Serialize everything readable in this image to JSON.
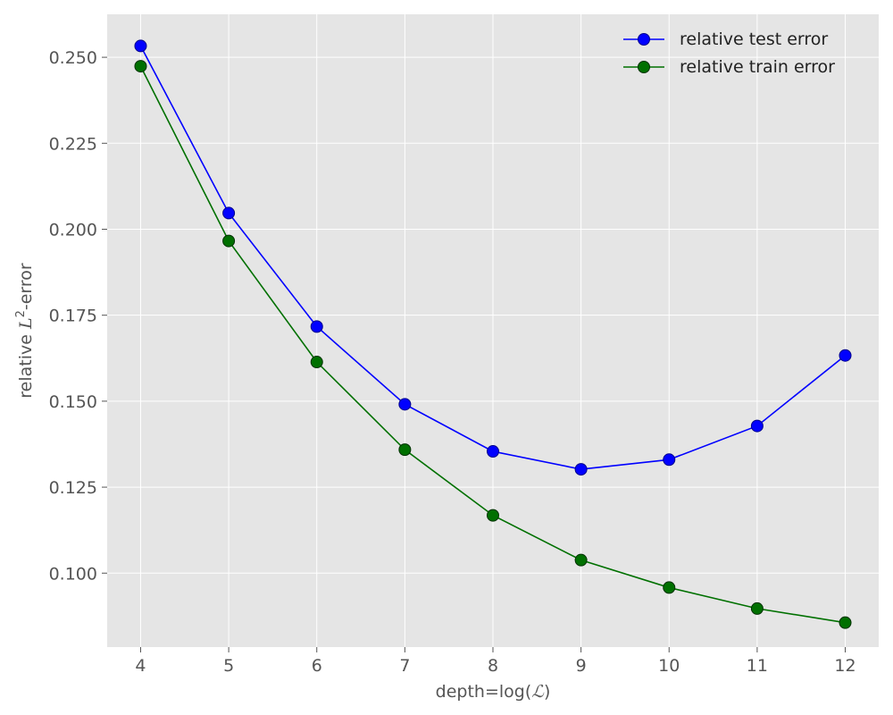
{
  "chart_data": {
    "type": "line",
    "title": "",
    "xlabel_prefix": "depth=log(",
    "xlabel_symbol": "ℒ",
    "xlabel_suffix": ")",
    "ylabel_prefix": "relative ",
    "ylabel_symbol": "L",
    "ylabel_sup": "2",
    "ylabel_suffix": "-error",
    "x": [
      4,
      5,
      6,
      7,
      8,
      9,
      10,
      11,
      12
    ],
    "xlim": [
      3.62,
      12.38
    ],
    "ylim": [
      0.0785,
      0.2625
    ],
    "xticks": [
      4,
      5,
      6,
      7,
      8,
      9,
      10,
      11,
      12
    ],
    "yticks": [
      0.1,
      0.125,
      0.15,
      0.175,
      0.2,
      0.225,
      0.25
    ],
    "ytick_labels": [
      "0.100",
      "0.125",
      "0.150",
      "0.175",
      "0.200",
      "0.225",
      "0.250"
    ],
    "grid": true,
    "legend_position": "top-right",
    "series": [
      {
        "name": "relative test error",
        "color": "#0000ff",
        "values": [
          0.2533,
          0.2047,
          0.1717,
          0.1491,
          0.1354,
          0.1302,
          0.133,
          0.1428,
          0.1633
        ]
      },
      {
        "name": "relative train error",
        "color": "#007000",
        "values": [
          0.2474,
          0.1966,
          0.1614,
          0.1359,
          0.1168,
          0.1038,
          0.0958,
          0.0897,
          0.0856
        ]
      }
    ]
  }
}
